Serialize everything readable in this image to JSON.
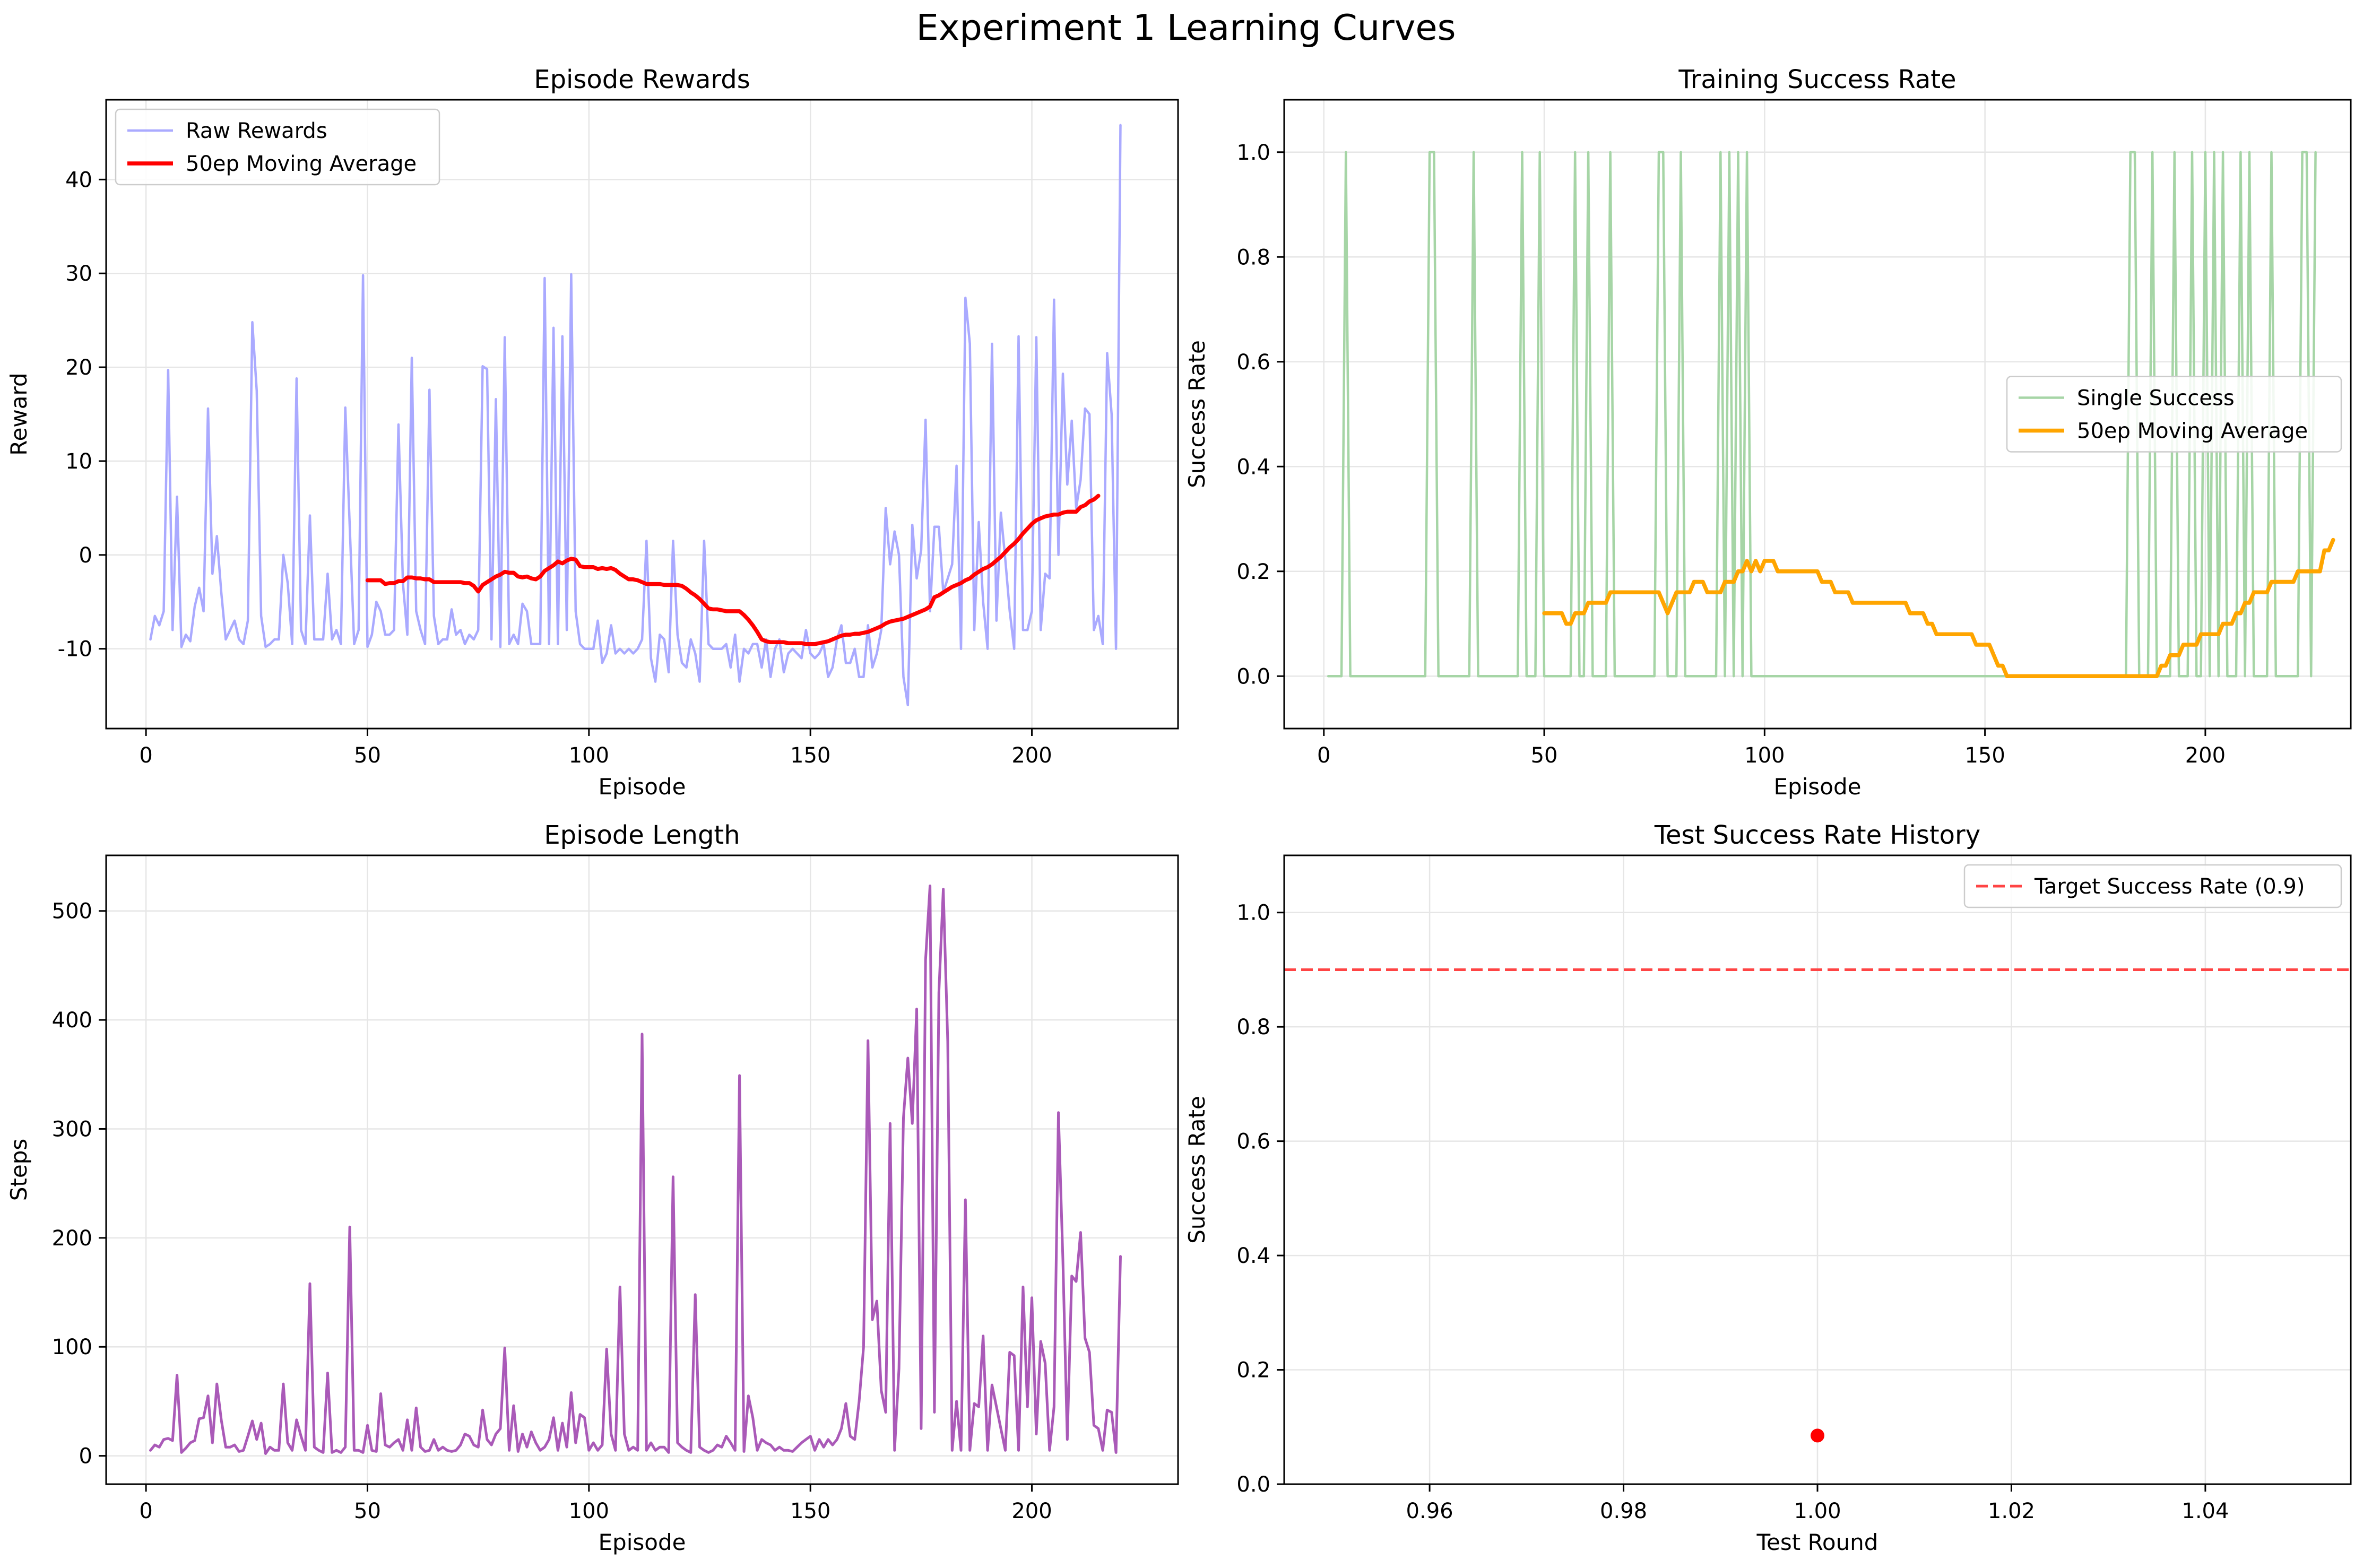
{
  "figure": {
    "suptitle": "Experiment 1 Learning Curves"
  },
  "colors": {
    "raw_rewards": "#aaaaff",
    "reward_ma": "#ff0000",
    "single_success": "#a6d5a6",
    "success_ma": "#ffa500",
    "episode_length": "#aa5ab8",
    "test_point": "#ff0000",
    "target_line": "#ff4444",
    "grid": "#e6e6e6",
    "axes": "#000000"
  },
  "chart_data": [
    {
      "id": "rewards",
      "type": "line",
      "title": "Episode Rewards",
      "xlabel": "Episode",
      "ylabel": "Reward",
      "xlim": [
        -9,
        233
      ],
      "ylim": [
        -18.5,
        48.5
      ],
      "xticks": [
        0,
        50,
        100,
        150,
        200
      ],
      "yticks": [
        -10,
        0,
        10,
        20,
        30,
        40
      ],
      "grid": true,
      "legend": "top-left",
      "series": [
        {
          "name": "Raw Rewards",
          "x_start": 1,
          "values": [
            -9,
            -6.5,
            -7.5,
            -6,
            19.7,
            -8,
            6.2,
            -9.8,
            -8.5,
            -9.2,
            -5.5,
            -3.5,
            -6,
            15.6,
            -2,
            2,
            -4,
            -9,
            -8,
            -7,
            -9,
            -9.5,
            -7,
            24.8,
            17.5,
            -6.5,
            -9.8,
            -9.5,
            -9,
            -9,
            0,
            -3,
            -9.5,
            18.8,
            -8,
            -9.5,
            4.2,
            -9,
            -9,
            -9,
            -2,
            -9,
            -8,
            -9.5,
            15.7,
            3,
            -9.5,
            -8,
            29.8,
            -9.8,
            -8.5,
            -5,
            -6,
            -8.5,
            -8.5,
            -8,
            13.9,
            -3,
            -8.5,
            21,
            -6,
            -8,
            -9.5,
            17.6,
            -6.5,
            -9.5,
            -9,
            -9,
            -5.8,
            -8.5,
            -8,
            -9.5,
            -8.5,
            -9,
            -8,
            20.1,
            19.8,
            -9,
            16.6,
            -9.8,
            23.2,
            -9.5,
            -8.5,
            -9.5,
            -5.2,
            -6,
            -9.5,
            -9.5,
            -9.5,
            29.5,
            -9.5,
            24.2,
            -9.5,
            23.3,
            -8,
            29.9,
            -6,
            -9.5,
            -10,
            -10,
            -10,
            -7,
            -11.5,
            -10.5,
            -7.5,
            -10.5,
            -10,
            -10.5,
            -10,
            -10.5,
            -10,
            -9,
            1.5,
            -11,
            -13.5,
            -8.5,
            -9,
            -12.5,
            1.5,
            -8.5,
            -11.5,
            -12,
            -9,
            -10.5,
            -13.5,
            1.5,
            -9.5,
            -10,
            -10,
            -10,
            -9.5,
            -12,
            -8.5,
            -13.5,
            -10,
            -10.5,
            -9.5,
            -9.5,
            -12,
            -9,
            -13,
            -10,
            -9,
            -12.5,
            -10.5,
            -10,
            -10.5,
            -11,
            -8,
            -10.5,
            -11,
            -10.5,
            -9.5,
            -13,
            -12,
            -9,
            -7.5,
            -11.5,
            -11.5,
            -10,
            -13,
            -13,
            -7.5,
            -12,
            -10.5,
            -8,
            5,
            -1,
            2.5,
            0,
            -13,
            -16,
            3.2,
            -2.5,
            0.5,
            14.4,
            -6,
            3,
            3,
            -4,
            -2.5,
            -1,
            9.5,
            -10,
            27.4,
            22.5,
            -8,
            3.5,
            -5,
            -10,
            22.5,
            -7,
            4.5,
            -0.5,
            -6,
            -10,
            23.3,
            -8,
            -8,
            -6,
            23.2,
            -8,
            -2,
            -2.5,
            27.2,
            0,
            19.3,
            7.5,
            14.3,
            5,
            8,
            15.6,
            15,
            -8,
            -6.5,
            -9.5,
            21.5,
            15,
            -10,
            45.8
          ]
        },
        {
          "name": "50ep Moving Average",
          "x_start": 50,
          "values": [
            -2.7,
            -2.7,
            -2.7,
            -2.7,
            -3.1,
            -3,
            -3,
            -2.8,
            -2.8,
            -2.4,
            -2.4,
            -2.5,
            -2.5,
            -2.6,
            -2.6,
            -2.9,
            -2.9,
            -2.9,
            -2.9,
            -2.9,
            -2.9,
            -2.9,
            -3,
            -3,
            -3.3,
            -3.9,
            -3.2,
            -2.9,
            -2.6,
            -2.3,
            -2.1,
            -1.8,
            -1.9,
            -1.9,
            -2.3,
            -2.4,
            -2.3,
            -2.5,
            -2.6,
            -2.3,
            -1.7,
            -1.4,
            -1.1,
            -0.7,
            -0.9,
            -0.6,
            -0.4,
            -0.5,
            -1.2,
            -1.3,
            -1.3,
            -1.3,
            -1.5,
            -1.4,
            -1.5,
            -1.4,
            -1.6,
            -2,
            -2.3,
            -2.6,
            -2.6,
            -2.7,
            -2.9,
            -3.1,
            -3.1,
            -3.1,
            -3.1,
            -3.2,
            -3.2,
            -3.2,
            -3.2,
            -3.3,
            -3.6,
            -4,
            -4.3,
            -4.7,
            -5.2,
            -5.7,
            -5.8,
            -5.8,
            -5.9,
            -6,
            -6,
            -6,
            -6,
            -6.4,
            -6.9,
            -7.5,
            -8.2,
            -9,
            -9.2,
            -9.3,
            -9.3,
            -9.3,
            -9.3,
            -9.4,
            -9.4,
            -9.4,
            -9.4,
            -9.5,
            -9.5,
            -9.5,
            -9.4,
            -9.3,
            -9.2,
            -9,
            -8.8,
            -8.6,
            -8.5,
            -8.5,
            -8.4,
            -8.4,
            -8.3,
            -8.2,
            -8,
            -7.8,
            -7.6,
            -7.3,
            -7.1,
            -7,
            -6.9,
            -6.8,
            -6.6,
            -6.4,
            -6.2,
            -6,
            -5.8,
            -5.5,
            -4.5,
            -4.3,
            -4,
            -3.7,
            -3.4,
            -3.2,
            -3,
            -2.7,
            -2.5,
            -2.1,
            -1.8,
            -1.5,
            -1.3,
            -1,
            -0.6,
            -0.2,
            0.3,
            0.8,
            1.2,
            1.7,
            2.3,
            2.8,
            3.3,
            3.7,
            3.9,
            4.1,
            4.2,
            4.3,
            4.3,
            4.5,
            4.6,
            4.6,
            4.6,
            5.1,
            5.3,
            5.7,
            5.9,
            6.3
          ]
        }
      ]
    },
    {
      "id": "train_success",
      "type": "line",
      "title": "Training Success Rate",
      "xlabel": "Episode",
      "ylabel": "Success Rate",
      "xlim": [
        -9,
        233
      ],
      "ylim": [
        -0.1,
        1.1
      ],
      "xticks": [
        0,
        50,
        100,
        150,
        200
      ],
      "yticks": [
        0.0,
        0.2,
        0.4,
        0.6,
        0.8,
        1.0
      ],
      "grid": true,
      "legend": "center-right",
      "series": [
        {
          "name": "Single Success",
          "x_start": 1,
          "values": [
            0,
            0,
            0,
            0,
            1,
            0,
            0,
            0,
            0,
            0,
            0,
            0,
            0,
            0,
            0,
            0,
            0,
            0,
            0,
            0,
            0,
            0,
            0,
            1,
            1,
            0,
            0,
            0,
            0,
            0,
            0,
            0,
            0,
            1,
            0,
            0,
            0,
            0,
            0,
            0,
            0,
            0,
            0,
            0,
            1,
            0,
            0,
            0,
            1,
            0,
            0,
            0,
            0,
            0,
            0,
            0,
            1,
            0,
            0,
            1,
            0,
            0,
            0,
            0,
            1,
            0,
            0,
            0,
            0,
            0,
            0,
            0,
            0,
            0,
            0,
            1,
            1,
            0,
            0,
            0,
            1,
            0,
            0,
            0,
            0,
            0,
            0,
            0,
            0,
            1,
            0,
            1,
            0,
            1,
            0,
            1,
            0,
            0,
            0,
            0,
            0,
            0,
            0,
            0,
            0,
            0,
            0,
            0,
            0,
            0,
            0,
            0,
            0,
            0,
            0,
            0,
            0,
            0,
            0,
            0,
            0,
            0,
            0,
            0,
            0,
            0,
            0,
            0,
            0,
            0,
            0,
            0,
            0,
            0,
            0,
            0,
            0,
            0,
            0,
            0,
            0,
            0,
            0,
            0,
            0,
            0,
            0,
            0,
            0,
            0,
            0,
            0,
            0,
            0,
            0,
            0,
            0,
            0,
            0,
            0,
            0,
            0,
            0,
            0,
            0,
            0,
            0,
            0,
            0,
            0,
            0,
            0,
            0,
            0,
            0,
            0,
            0,
            0,
            0,
            0,
            0,
            0,
            1,
            1,
            0,
            0,
            0,
            1,
            0,
            0,
            0,
            0,
            1,
            0,
            0,
            0,
            1,
            0,
            0,
            1,
            0,
            1,
            0,
            1,
            0,
            0,
            0,
            1,
            0,
            1,
            0,
            0,
            0,
            0,
            1,
            0,
            0,
            0,
            0,
            0,
            0,
            1,
            1,
            0,
            1
          ]
        },
        {
          "name": "50ep Moving Average",
          "x_start": 50,
          "values": [
            0.12,
            0.12,
            0.12,
            0.12,
            0.12,
            0.1,
            0.1,
            0.12,
            0.12,
            0.12,
            0.14,
            0.14,
            0.14,
            0.14,
            0.14,
            0.16,
            0.16,
            0.16,
            0.16,
            0.16,
            0.16,
            0.16,
            0.16,
            0.16,
            0.16,
            0.16,
            0.16,
            0.14,
            0.12,
            0.14,
            0.16,
            0.16,
            0.16,
            0.16,
            0.18,
            0.18,
            0.18,
            0.16,
            0.16,
            0.16,
            0.16,
            0.18,
            0.18,
            0.18,
            0.2,
            0.2,
            0.22,
            0.2,
            0.22,
            0.2,
            0.22,
            0.22,
            0.22,
            0.2,
            0.2,
            0.2,
            0.2,
            0.2,
            0.2,
            0.2,
            0.2,
            0.2,
            0.2,
            0.18,
            0.18,
            0.18,
            0.16,
            0.16,
            0.16,
            0.16,
            0.14,
            0.14,
            0.14,
            0.14,
            0.14,
            0.14,
            0.14,
            0.14,
            0.14,
            0.14,
            0.14,
            0.14,
            0.14,
            0.12,
            0.12,
            0.12,
            0.12,
            0.1,
            0.1,
            0.08,
            0.08,
            0.08,
            0.08,
            0.08,
            0.08,
            0.08,
            0.08,
            0.08,
            0.06,
            0.06,
            0.06,
            0.06,
            0.04,
            0.02,
            0.02,
            0,
            0,
            0,
            0,
            0,
            0,
            0,
            0,
            0,
            0,
            0,
            0,
            0,
            0,
            0,
            0,
            0,
            0,
            0,
            0,
            0,
            0,
            0,
            0,
            0,
            0,
            0,
            0,
            0,
            0,
            0,
            0,
            0,
            0,
            0,
            0.02,
            0.02,
            0.04,
            0.04,
            0.04,
            0.06,
            0.06,
            0.06,
            0.06,
            0.08,
            0.08,
            0.08,
            0.08,
            0.08,
            0.1,
            0.1,
            0.1,
            0.12,
            0.12,
            0.14,
            0.14,
            0.16,
            0.16,
            0.16,
            0.16,
            0.18,
            0.18,
            0.18,
            0.18,
            0.18,
            0.18,
            0.2,
            0.2,
            0.2,
            0.2,
            0.2,
            0.2,
            0.24,
            0.24,
            0.26
          ]
        }
      ]
    },
    {
      "id": "ep_length",
      "type": "line",
      "title": "Episode Length",
      "xlabel": "Episode",
      "ylabel": "Steps",
      "xlim": [
        -9,
        233
      ],
      "ylim": [
        -26,
        551
      ],
      "xticks": [
        0,
        50,
        100,
        150,
        200
      ],
      "yticks": [
        0,
        100,
        200,
        300,
        400,
        500
      ],
      "grid": true,
      "legend": "none",
      "series": [
        {
          "name": "",
          "x_start": 1,
          "values": [
            5,
            10,
            8,
            15,
            16,
            14,
            74,
            3,
            7,
            12,
            14,
            34,
            35,
            55,
            12,
            66,
            33,
            8,
            8,
            10,
            4,
            5,
            18,
            32,
            15,
            30,
            2,
            8,
            5,
            5,
            66,
            12,
            5,
            33,
            18,
            5,
            158,
            8,
            5,
            3,
            76,
            3,
            5,
            3,
            8,
            210,
            5,
            5,
            3,
            28,
            5,
            4,
            57,
            10,
            8,
            12,
            15,
            5,
            33,
            5,
            44,
            8,
            4,
            5,
            15,
            5,
            8,
            5,
            4,
            5,
            10,
            20,
            18,
            10,
            8,
            42,
            15,
            10,
            20,
            25,
            99,
            5,
            46,
            4,
            20,
            8,
            22,
            12,
            5,
            8,
            15,
            35,
            5,
            30,
            8,
            58,
            12,
            38,
            35,
            5,
            12,
            5,
            10,
            98,
            20,
            5,
            155,
            20,
            5,
            8,
            5,
            387,
            5,
            12,
            5,
            8,
            8,
            3,
            256,
            12,
            8,
            5,
            3,
            148,
            8,
            5,
            3,
            5,
            10,
            8,
            18,
            12,
            5,
            349,
            4,
            55,
            35,
            5,
            15,
            12,
            10,
            5,
            8,
            5,
            5,
            4,
            8,
            12,
            15,
            18,
            5,
            15,
            8,
            15,
            10,
            15,
            25,
            48,
            18,
            15,
            50,
            100,
            381,
            125,
            142,
            60,
            40,
            305,
            5,
            80,
            310,
            365,
            305,
            410,
            25,
            455,
            523,
            40,
            425,
            520,
            380,
            5,
            50,
            5,
            235,
            5,
            48,
            45,
            110,
            5,
            65,
            45,
            25,
            5,
            95,
            92,
            5,
            155,
            45,
            145,
            20,
            105,
            85,
            5,
            45,
            315,
            180,
            15,
            165,
            160,
            205,
            108,
            95,
            28,
            25,
            5,
            42,
            40,
            3,
            183
          ]
        }
      ]
    },
    {
      "id": "test_success",
      "type": "scatter",
      "title": "Test Success Rate History",
      "xlabel": "Test Round",
      "ylabel": "Success Rate",
      "xlim": [
        0.945,
        1.055
      ],
      "ylim": [
        0.0,
        1.1
      ],
      "xticks": [
        0.96,
        0.98,
        1.0,
        1.02,
        1.04
      ],
      "yticks": [
        0.0,
        0.2,
        0.4,
        0.6,
        0.8,
        1.0
      ],
      "grid": true,
      "legend": "top-right",
      "points": [
        {
          "x": 1.0,
          "y": 0.085
        }
      ],
      "hlines": [
        {
          "y": 0.9,
          "name": "Target Success Rate (0.9)"
        }
      ]
    }
  ]
}
